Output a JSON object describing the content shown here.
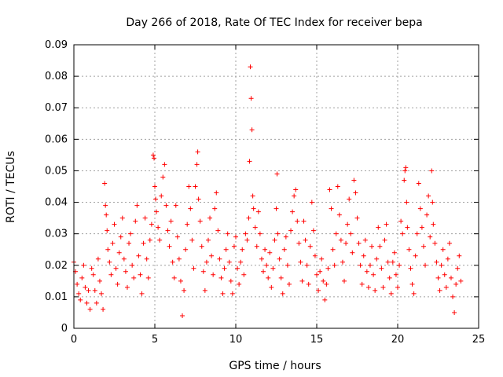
{
  "chart_data": {
    "type": "scatter",
    "title": "Day 266 of 2018, Rate Of TEC Index for receiver bepa",
    "xlabel": "GPS time / hours",
    "ylabel": "ROTI / TECUs",
    "xlim": [
      0,
      25
    ],
    "ylim": [
      0,
      0.09
    ],
    "xticks": [
      0,
      5,
      10,
      15,
      20,
      25
    ],
    "xtick_labels": [
      "0",
      "5",
      "10",
      "15",
      "20",
      "25"
    ],
    "yticks": [
      0,
      0.01,
      0.02,
      0.03,
      0.04,
      0.05,
      0.06,
      0.07,
      0.08,
      0.09
    ],
    "ytick_labels": [
      "0",
      "0.01",
      "0.02",
      "0.03",
      "0.04",
      "0.05",
      "0.06",
      "0.07",
      "0.08",
      "0.09"
    ],
    "grid": true,
    "marker": "+",
    "color": "#ff0000",
    "series": [
      {
        "name": "ROTI",
        "points": [
          [
            0.0,
            0.021
          ],
          [
            0.1,
            0.018
          ],
          [
            0.2,
            0.014
          ],
          [
            0.3,
            0.011
          ],
          [
            0.4,
            0.009
          ],
          [
            0.5,
            0.016
          ],
          [
            0.6,
            0.02
          ],
          [
            0.7,
            0.013
          ],
          [
            0.8,
            0.008
          ],
          [
            0.9,
            0.012
          ],
          [
            1.0,
            0.006
          ],
          [
            1.1,
            0.019
          ],
          [
            1.2,
            0.017
          ],
          [
            1.3,
            0.012
          ],
          [
            1.4,
            0.008
          ],
          [
            1.5,
            0.022
          ],
          [
            1.6,
            0.015
          ],
          [
            1.7,
            0.011
          ],
          [
            1.8,
            0.006
          ],
          [
            1.9,
            0.046
          ],
          [
            1.95,
            0.039
          ],
          [
            2.0,
            0.036
          ],
          [
            2.05,
            0.031
          ],
          [
            2.1,
            0.025
          ],
          [
            2.2,
            0.021
          ],
          [
            2.3,
            0.017
          ],
          [
            2.4,
            0.027
          ],
          [
            2.5,
            0.033
          ],
          [
            2.6,
            0.019
          ],
          [
            2.7,
            0.014
          ],
          [
            2.8,
            0.024
          ],
          [
            2.9,
            0.029
          ],
          [
            3.0,
            0.035
          ],
          [
            3.1,
            0.022
          ],
          [
            3.2,
            0.018
          ],
          [
            3.3,
            0.013
          ],
          [
            3.4,
            0.027
          ],
          [
            3.5,
            0.03
          ],
          [
            3.6,
            0.02
          ],
          [
            3.7,
            0.016
          ],
          [
            3.8,
            0.034
          ],
          [
            3.9,
            0.039
          ],
          [
            4.0,
            0.023
          ],
          [
            4.1,
            0.017
          ],
          [
            4.2,
            0.011
          ],
          [
            4.3,
            0.027
          ],
          [
            4.4,
            0.035
          ],
          [
            4.5,
            0.022
          ],
          [
            4.6,
            0.016
          ],
          [
            4.7,
            0.028
          ],
          [
            4.8,
            0.033
          ],
          [
            4.9,
            0.055
          ],
          [
            4.95,
            0.054
          ],
          [
            5.0,
            0.045
          ],
          [
            5.05,
            0.041
          ],
          [
            5.1,
            0.037
          ],
          [
            5.2,
            0.032
          ],
          [
            5.3,
            0.028
          ],
          [
            5.4,
            0.042
          ],
          [
            5.5,
            0.048
          ],
          [
            5.6,
            0.052
          ],
          [
            5.7,
            0.039
          ],
          [
            5.8,
            0.031
          ],
          [
            5.9,
            0.026
          ],
          [
            6.0,
            0.034
          ],
          [
            6.1,
            0.021
          ],
          [
            6.2,
            0.016
          ],
          [
            6.3,
            0.039
          ],
          [
            6.4,
            0.029
          ],
          [
            6.5,
            0.022
          ],
          [
            6.6,
            0.015
          ],
          [
            6.7,
            0.004
          ],
          [
            6.8,
            0.012
          ],
          [
            6.9,
            0.025
          ],
          [
            7.0,
            0.033
          ],
          [
            7.1,
            0.045
          ],
          [
            7.2,
            0.038
          ],
          [
            7.3,
            0.028
          ],
          [
            7.4,
            0.019
          ],
          [
            7.5,
            0.045
          ],
          [
            7.6,
            0.052
          ],
          [
            7.65,
            0.056
          ],
          [
            7.7,
            0.041
          ],
          [
            7.8,
            0.034
          ],
          [
            7.9,
            0.026
          ],
          [
            8.0,
            0.018
          ],
          [
            8.1,
            0.012
          ],
          [
            8.2,
            0.021
          ],
          [
            8.3,
            0.028
          ],
          [
            8.4,
            0.035
          ],
          [
            8.5,
            0.023
          ],
          [
            8.6,
            0.017
          ],
          [
            8.7,
            0.038
          ],
          [
            8.8,
            0.043
          ],
          [
            8.9,
            0.031
          ],
          [
            9.0,
            0.022
          ],
          [
            9.1,
            0.016
          ],
          [
            9.2,
            0.011
          ],
          [
            9.3,
            0.019
          ],
          [
            9.4,
            0.025
          ],
          [
            9.5,
            0.03
          ],
          [
            9.6,
            0.021
          ],
          [
            9.7,
            0.015
          ],
          [
            9.8,
            0.011
          ],
          [
            9.9,
            0.026
          ],
          [
            10.0,
            0.029
          ],
          [
            10.1,
            0.019
          ],
          [
            10.2,
            0.014
          ],
          [
            10.3,
            0.021
          ],
          [
            10.4,
            0.025
          ],
          [
            10.5,
            0.017
          ],
          [
            10.6,
            0.03
          ],
          [
            10.7,
            0.028
          ],
          [
            10.8,
            0.035
          ],
          [
            10.85,
            0.053
          ],
          [
            10.9,
            0.083
          ],
          [
            10.95,
            0.073
          ],
          [
            11.0,
            0.063
          ],
          [
            11.05,
            0.042
          ],
          [
            11.1,
            0.038
          ],
          [
            11.2,
            0.032
          ],
          [
            11.3,
            0.026
          ],
          [
            11.4,
            0.037
          ],
          [
            11.5,
            0.03
          ],
          [
            11.6,
            0.022
          ],
          [
            11.7,
            0.018
          ],
          [
            11.8,
            0.025
          ],
          [
            11.9,
            0.02
          ],
          [
            12.0,
            0.016
          ],
          [
            12.1,
            0.024
          ],
          [
            12.2,
            0.013
          ],
          [
            12.3,
            0.019
          ],
          [
            12.4,
            0.028
          ],
          [
            12.5,
            0.038
          ],
          [
            12.55,
            0.049
          ],
          [
            12.6,
            0.03
          ],
          [
            12.7,
            0.022
          ],
          [
            12.8,
            0.016
          ],
          [
            12.9,
            0.011
          ],
          [
            13.0,
            0.025
          ],
          [
            13.1,
            0.029
          ],
          [
            13.2,
            0.02
          ],
          [
            13.3,
            0.014
          ],
          [
            13.4,
            0.031
          ],
          [
            13.5,
            0.037
          ],
          [
            13.6,
            0.042
          ],
          [
            13.7,
            0.044
          ],
          [
            13.8,
            0.034
          ],
          [
            13.9,
            0.027
          ],
          [
            14.0,
            0.021
          ],
          [
            14.1,
            0.015
          ],
          [
            14.2,
            0.034
          ],
          [
            14.3,
            0.028
          ],
          [
            14.4,
            0.02
          ],
          [
            14.5,
            0.014
          ],
          [
            14.6,
            0.026
          ],
          [
            14.7,
            0.04
          ],
          [
            14.8,
            0.031
          ],
          [
            14.9,
            0.023
          ],
          [
            15.0,
            0.017
          ],
          [
            15.1,
            0.012
          ],
          [
            15.2,
            0.018
          ],
          [
            15.3,
            0.022
          ],
          [
            15.4,
            0.015
          ],
          [
            15.5,
            0.009
          ],
          [
            15.6,
            0.014
          ],
          [
            15.7,
            0.019
          ],
          [
            15.8,
            0.044
          ],
          [
            15.9,
            0.038
          ],
          [
            16.0,
            0.025
          ],
          [
            16.1,
            0.02
          ],
          [
            16.2,
            0.03
          ],
          [
            16.3,
            0.045
          ],
          [
            16.4,
            0.036
          ],
          [
            16.5,
            0.028
          ],
          [
            16.6,
            0.021
          ],
          [
            16.7,
            0.015
          ],
          [
            16.8,
            0.027
          ],
          [
            16.9,
            0.033
          ],
          [
            17.0,
            0.041
          ],
          [
            17.1,
            0.03
          ],
          [
            17.2,
            0.024
          ],
          [
            17.3,
            0.047
          ],
          [
            17.4,
            0.043
          ],
          [
            17.5,
            0.035
          ],
          [
            17.6,
            0.027
          ],
          [
            17.7,
            0.02
          ],
          [
            17.8,
            0.014
          ],
          [
            17.9,
            0.023
          ],
          [
            18.0,
            0.028
          ],
          [
            18.1,
            0.018
          ],
          [
            18.2,
            0.013
          ],
          [
            18.3,
            0.02
          ],
          [
            18.4,
            0.026
          ],
          [
            18.5,
            0.017
          ],
          [
            18.6,
            0.012
          ],
          [
            18.7,
            0.022
          ],
          [
            18.8,
            0.032
          ],
          [
            18.9,
            0.026
          ],
          [
            19.0,
            0.019
          ],
          [
            19.1,
            0.013
          ],
          [
            19.2,
            0.028
          ],
          [
            19.3,
            0.033
          ],
          [
            19.4,
            0.021
          ],
          [
            19.5,
            0.016
          ],
          [
            19.6,
            0.011
          ],
          [
            19.7,
            0.021
          ],
          [
            19.8,
            0.024
          ],
          [
            19.9,
            0.017
          ],
          [
            20.0,
            0.013
          ],
          [
            20.1,
            0.02
          ],
          [
            20.2,
            0.034
          ],
          [
            20.3,
            0.03
          ],
          [
            20.4,
            0.047
          ],
          [
            20.45,
            0.05
          ],
          [
            20.5,
            0.051
          ],
          [
            20.55,
            0.04
          ],
          [
            20.6,
            0.032
          ],
          [
            20.7,
            0.025
          ],
          [
            20.8,
            0.019
          ],
          [
            20.9,
            0.014
          ],
          [
            21.0,
            0.011
          ],
          [
            21.1,
            0.023
          ],
          [
            21.2,
            0.03
          ],
          [
            21.3,
            0.046
          ],
          [
            21.4,
            0.038
          ],
          [
            21.5,
            0.032
          ],
          [
            21.6,
            0.026
          ],
          [
            21.7,
            0.02
          ],
          [
            21.8,
            0.036
          ],
          [
            21.9,
            0.042
          ],
          [
            22.0,
            0.029
          ],
          [
            22.1,
            0.05
          ],
          [
            22.15,
            0.04
          ],
          [
            22.2,
            0.033
          ],
          [
            22.3,
            0.027
          ],
          [
            22.4,
            0.021
          ],
          [
            22.5,
            0.016
          ],
          [
            22.6,
            0.012
          ],
          [
            22.7,
            0.02
          ],
          [
            22.8,
            0.025
          ],
          [
            22.9,
            0.017
          ],
          [
            23.0,
            0.013
          ],
          [
            23.1,
            0.022
          ],
          [
            23.2,
            0.027
          ],
          [
            23.3,
            0.016
          ],
          [
            23.4,
            0.01
          ],
          [
            23.5,
            0.005
          ],
          [
            23.6,
            0.014
          ],
          [
            23.7,
            0.019
          ],
          [
            23.8,
            0.023
          ],
          [
            23.9,
            0.015
          ]
        ]
      }
    ]
  }
}
